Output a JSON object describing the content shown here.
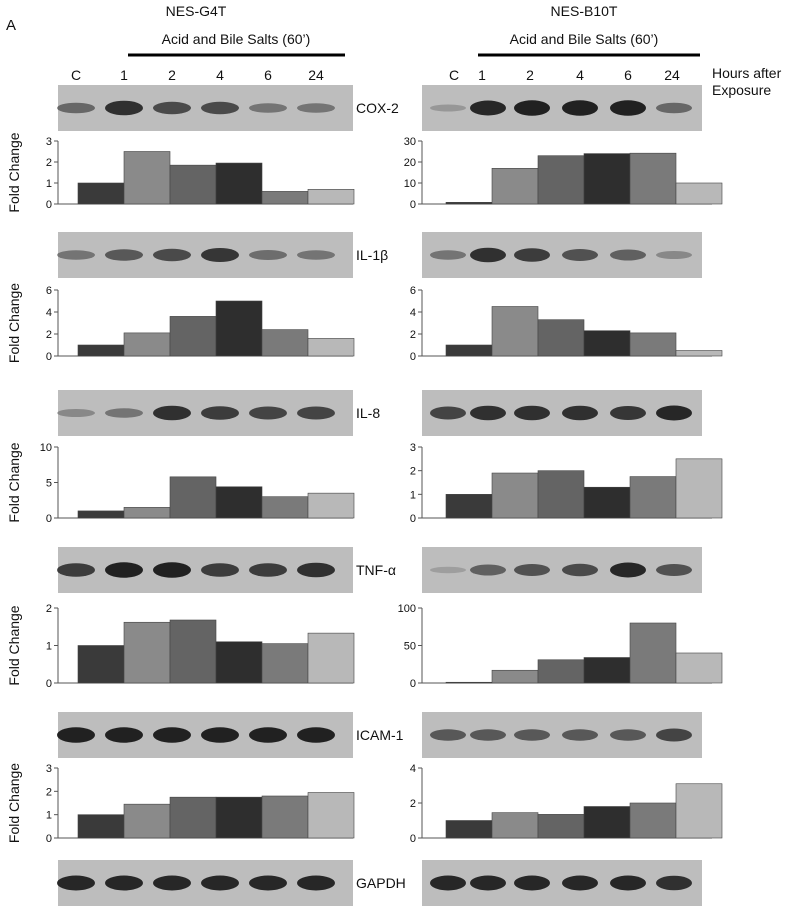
{
  "figure": {
    "panel_label": "A",
    "cell_lines": [
      "NES-G4T",
      "NES-B10T"
    ],
    "treatment_label": "Acid and Bile Salts (60’)",
    "lanes": [
      "C",
      "1",
      "2",
      "4",
      "6",
      "24"
    ],
    "hours_label_line1": "Hours after",
    "hours_label_line2": "Exposure",
    "fold_change_label": "Fold Change",
    "reference_gene": "GAPDH"
  },
  "colors": {
    "bars": [
      "#3a3a3a",
      "#8a8a8a",
      "#646464",
      "#2e2e2e",
      "#7a7a7a",
      "#b8b8b8"
    ],
    "blot_bg": "#bdbdbd",
    "band": "#1a1a1a"
  },
  "blots": {
    "G4T": {
      "COX-2": [
        0.45,
        0.85,
        0.65,
        0.65,
        0.35,
        0.35
      ],
      "IL-1β": [
        0.35,
        0.55,
        0.65,
        0.8,
        0.4,
        0.35
      ],
      "IL-8": [
        0.2,
        0.35,
        0.85,
        0.75,
        0.7,
        0.7
      ],
      "TNF-α": [
        0.75,
        0.95,
        0.95,
        0.75,
        0.75,
        0.85
      ],
      "ICAM-1": [
        0.95,
        0.95,
        0.95,
        0.95,
        0.95,
        0.95
      ],
      "GAPDH": [
        0.9,
        0.9,
        0.9,
        0.9,
        0.9,
        0.9
      ]
    },
    "B10T": {
      "COX-2": [
        0.1,
        0.9,
        0.95,
        0.95,
        0.95,
        0.45
      ],
      "IL-1β": [
        0.35,
        0.85,
        0.75,
        0.6,
        0.5,
        0.2
      ],
      "IL-8": [
        0.7,
        0.85,
        0.85,
        0.85,
        0.8,
        0.9
      ],
      "TNF-α": [
        0.05,
        0.5,
        0.6,
        0.65,
        0.9,
        0.6
      ],
      "ICAM-1": [
        0.55,
        0.55,
        0.55,
        0.55,
        0.55,
        0.7
      ],
      "GAPDH": [
        0.9,
        0.9,
        0.9,
        0.9,
        0.9,
        0.85
      ]
    }
  },
  "chart_data": [
    {
      "type": "bar",
      "cell_line": "NES-G4T",
      "gene": "COX-2",
      "categories": [
        "C",
        "1",
        "2",
        "4",
        "6",
        "24"
      ],
      "values": [
        1.0,
        2.5,
        1.85,
        1.95,
        0.6,
        0.7
      ],
      "ylabel": "Fold Change",
      "ylim": [
        0,
        3
      ],
      "yticks": [
        0,
        1,
        2,
        3
      ],
      "grid": false
    },
    {
      "type": "bar",
      "cell_line": "NES-B10T",
      "gene": "COX-2",
      "categories": [
        "C",
        "1",
        "2",
        "4",
        "6",
        "24"
      ],
      "values": [
        0.8,
        17,
        23,
        24,
        24.2,
        10
      ],
      "ylabel": "",
      "ylim": [
        0,
        30
      ],
      "yticks": [
        0,
        10,
        20,
        30
      ],
      "grid": false
    },
    {
      "type": "bar",
      "cell_line": "NES-G4T",
      "gene": "IL-1β",
      "categories": [
        "C",
        "1",
        "2",
        "4",
        "6",
        "24"
      ],
      "values": [
        1.0,
        2.1,
        3.6,
        5.0,
        2.4,
        1.6
      ],
      "ylabel": "Fold Change",
      "ylim": [
        0,
        6
      ],
      "yticks": [
        0,
        2,
        4,
        6
      ],
      "grid": false
    },
    {
      "type": "bar",
      "cell_line": "NES-B10T",
      "gene": "IL-1β",
      "categories": [
        "C",
        "1",
        "2",
        "4",
        "6",
        "24"
      ],
      "values": [
        1.0,
        4.5,
        3.3,
        2.3,
        2.1,
        0.5
      ],
      "ylabel": "",
      "ylim": [
        0,
        6
      ],
      "yticks": [
        0,
        2,
        4,
        6
      ],
      "grid": false
    },
    {
      "type": "bar",
      "cell_line": "NES-G4T",
      "gene": "IL-8",
      "categories": [
        "C",
        "1",
        "2",
        "4",
        "6",
        "24"
      ],
      "values": [
        1.0,
        1.5,
        5.8,
        4.4,
        3.0,
        3.5
      ],
      "ylabel": "Fold Change",
      "ylim": [
        0,
        10
      ],
      "yticks": [
        0,
        5,
        10
      ],
      "grid": false
    },
    {
      "type": "bar",
      "cell_line": "NES-B10T",
      "gene": "IL-8",
      "categories": [
        "C",
        "1",
        "2",
        "4",
        "6",
        "24"
      ],
      "values": [
        1.0,
        1.9,
        2.0,
        1.3,
        1.75,
        2.5
      ],
      "ylabel": "",
      "ylim": [
        0,
        3
      ],
      "yticks": [
        0,
        1,
        2,
        3
      ],
      "grid": false
    },
    {
      "type": "bar",
      "cell_line": "NES-G4T",
      "gene": "TNF-α",
      "categories": [
        "C",
        "1",
        "2",
        "4",
        "6",
        "24"
      ],
      "values": [
        1.0,
        1.62,
        1.68,
        1.1,
        1.05,
        1.33
      ],
      "ylabel": "Fold Change",
      "ylim": [
        0,
        2
      ],
      "yticks": [
        0,
        1,
        2
      ],
      "grid": false
    },
    {
      "type": "bar",
      "cell_line": "NES-B10T",
      "gene": "TNF-α",
      "categories": [
        "C",
        "1",
        "2",
        "4",
        "6",
        "24"
      ],
      "values": [
        1.0,
        17,
        31,
        34,
        80,
        40
      ],
      "ylabel": "",
      "ylim": [
        0,
        100
      ],
      "yticks": [
        0,
        50,
        100
      ],
      "grid": false
    },
    {
      "type": "bar",
      "cell_line": "NES-G4T",
      "gene": "ICAM-1",
      "categories": [
        "C",
        "1",
        "2",
        "4",
        "6",
        "24"
      ],
      "values": [
        1.0,
        1.45,
        1.75,
        1.75,
        1.8,
        1.95
      ],
      "ylabel": "Fold Change",
      "ylim": [
        0,
        3
      ],
      "yticks": [
        0,
        1,
        2,
        3
      ],
      "grid": false
    },
    {
      "type": "bar",
      "cell_line": "NES-B10T",
      "gene": "ICAM-1",
      "categories": [
        "C",
        "1",
        "2",
        "4",
        "6",
        "24"
      ],
      "values": [
        1.0,
        1.45,
        1.35,
        1.8,
        2.0,
        3.1
      ],
      "ylabel": "",
      "ylim": [
        0,
        4
      ],
      "yticks": [
        0,
        2,
        4
      ],
      "grid": false
    }
  ]
}
